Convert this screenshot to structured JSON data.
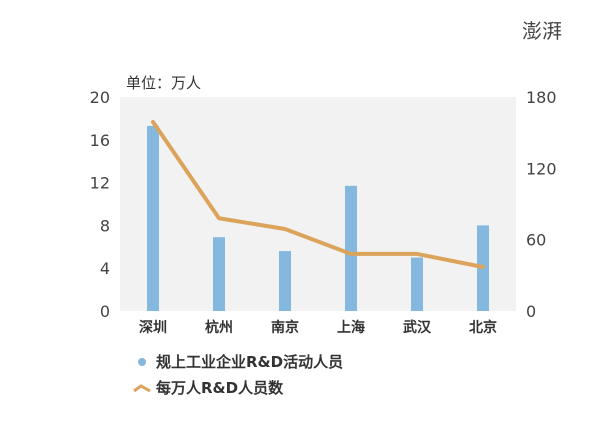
{
  "logo": {
    "text": "澎湃"
  },
  "chart_data": {
    "type": "bar+line",
    "unit_label": "单位：万人",
    "categories": [
      "深圳",
      "杭州",
      "南京",
      "上海",
      "武汉",
      "北京"
    ],
    "series": [
      {
        "name": "规上工业企业R&D活动人员",
        "type": "bar",
        "axis": "left",
        "color": "#85b8de",
        "values": [
          17.3,
          6.9,
          5.6,
          11.7,
          5.0,
          8.0
        ]
      },
      {
        "name": "每万人R&D人员数",
        "type": "line",
        "axis": "right",
        "color": "#dca35a",
        "values": [
          159,
          78,
          69,
          48,
          48,
          37
        ]
      }
    ],
    "y_left": {
      "min": 0,
      "max": 20,
      "ticks": [
        0,
        4,
        8,
        12,
        16,
        20
      ]
    },
    "y_right": {
      "min": 0,
      "max": 180,
      "ticks": [
        0,
        60,
        120,
        180
      ]
    },
    "plot_background": "#f2f2f2",
    "legend_position": "bottom-left"
  }
}
